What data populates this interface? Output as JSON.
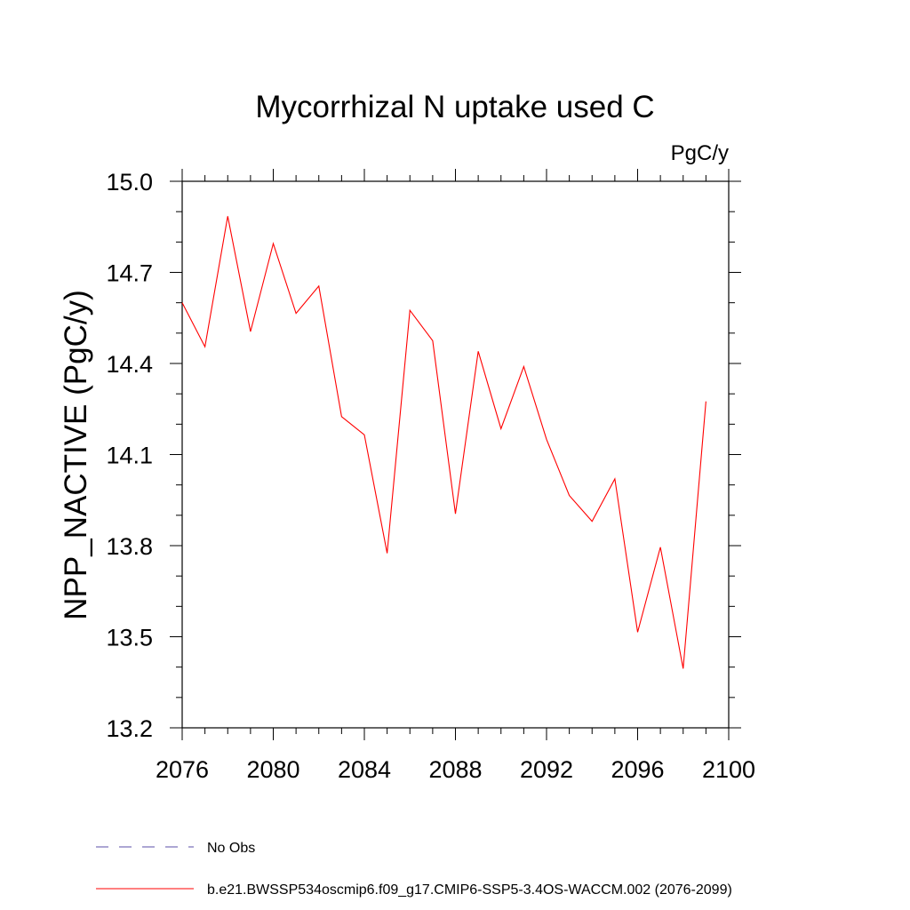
{
  "chart_data": {
    "type": "line",
    "title": "Mycorrhizal N uptake used C",
    "units_label": "PgC/y",
    "ylabel": "NPP_NACTIVE  (PgC/y)",
    "xlabel": "",
    "xlim": [
      2076,
      2100
    ],
    "ylim": [
      13.2,
      15.0
    ],
    "xticks": [
      2076,
      2080,
      2084,
      2088,
      2092,
      2096,
      2100
    ],
    "yticks": [
      13.2,
      13.5,
      13.8,
      14.1,
      14.4,
      14.7,
      15.0
    ],
    "ytick_labels": [
      "13.2",
      "13.5",
      "13.8",
      "14.1",
      "14.4",
      "14.7",
      "15.0"
    ],
    "grid": false,
    "legend_position": "bottom",
    "series": [
      {
        "name": "b.e21.BWSSP534oscmip6.f09_g17.CMIP6-SSP5-3.4OS-WACCM.002 (2076-2099)",
        "color": "#ff0000",
        "style": "solid",
        "x": [
          2076,
          2077,
          2078,
          2079,
          2080,
          2081,
          2082,
          2083,
          2084,
          2085,
          2086,
          2087,
          2088,
          2089,
          2090,
          2091,
          2092,
          2093,
          2094,
          2095,
          2096,
          2097,
          2098,
          2099
        ],
        "y": [
          14.6,
          14.455,
          14.885,
          14.505,
          14.795,
          14.565,
          14.655,
          14.225,
          14.165,
          13.775,
          14.575,
          14.475,
          13.905,
          14.44,
          14.185,
          14.39,
          14.15,
          13.965,
          13.88,
          14.02,
          13.515,
          13.795,
          13.395,
          14.275
        ]
      }
    ],
    "legend": [
      {
        "label": "No Obs",
        "color": "#5b4fa8",
        "style": "dashed"
      },
      {
        "label": "b.e21.BWSSP534oscmip6.f09_g17.CMIP6-SSP5-3.4OS-WACCM.002 (2076-2099)",
        "color": "#ff0000",
        "style": "solid"
      }
    ]
  }
}
